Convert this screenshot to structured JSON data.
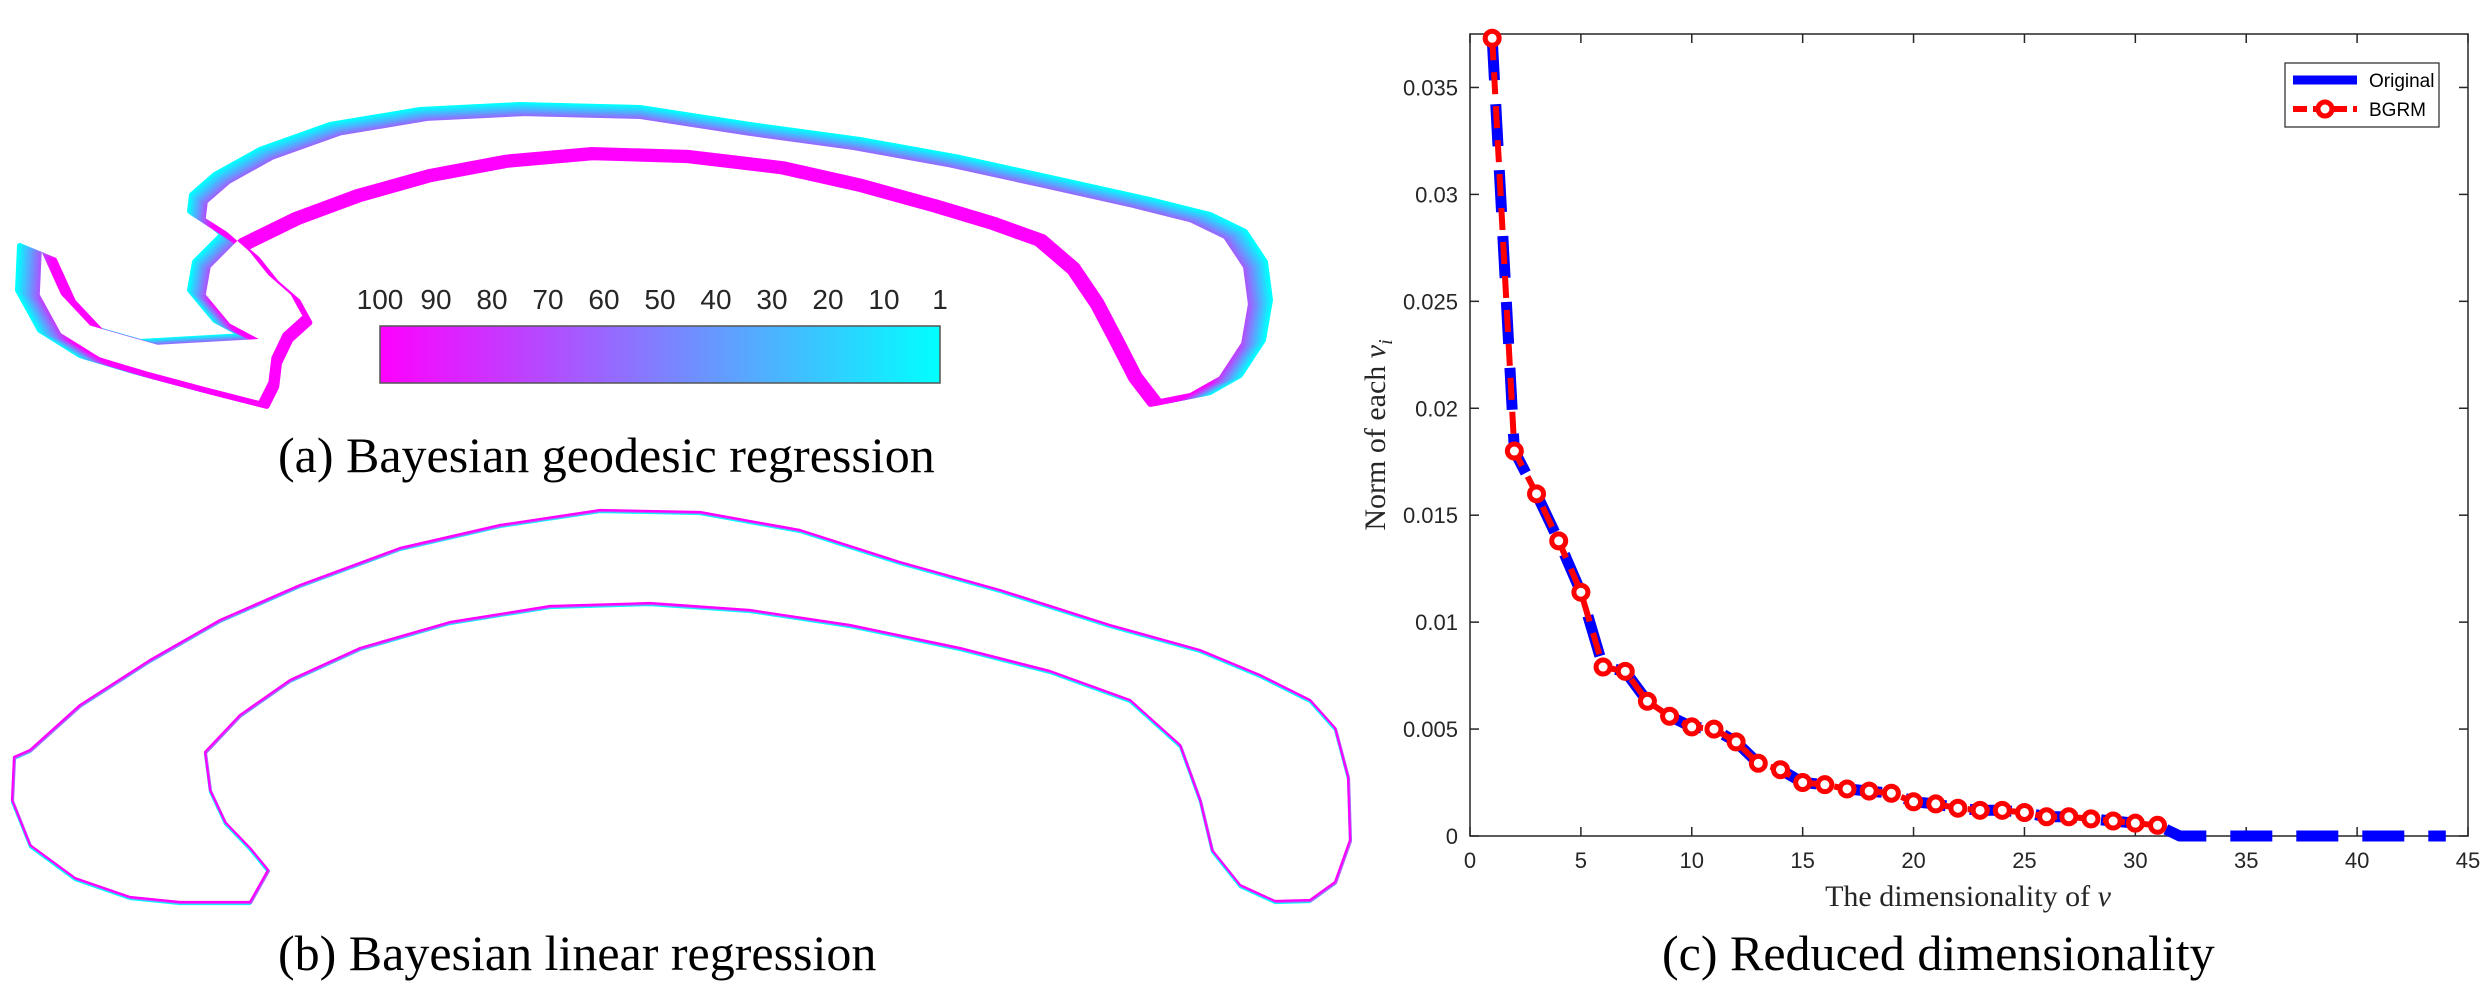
{
  "captions": {
    "a": "(a) Bayesian geodesic regression",
    "b": "(b) Bayesian linear regression",
    "c": "(c) Reduced dimensionality"
  },
  "colorbar": {
    "ticks": [
      "100",
      "90",
      "80",
      "70",
      "60",
      "50",
      "40",
      "30",
      "20",
      "10",
      "1"
    ],
    "colors": {
      "start": "#ff00ff",
      "end": "#00ffff"
    }
  },
  "colors": {
    "magenta": "#ff00ff",
    "cyan": "#00ffff",
    "original": "#0000ff",
    "bgrm": "#ff0000"
  },
  "chart_data": {
    "type": "line",
    "xlabel": "The dimensionality of v",
    "ylabel": "Norm of each v_i",
    "xlim": [
      0,
      45
    ],
    "ylim": [
      0,
      0.0375
    ],
    "xticks": [
      0,
      5,
      10,
      15,
      20,
      25,
      30,
      35,
      40,
      45
    ],
    "yticks": [
      0,
      0.005,
      0.01,
      0.015,
      0.02,
      0.025,
      0.03,
      0.035
    ],
    "xtick_labels": [
      "0",
      "5",
      "10",
      "15",
      "20",
      "25",
      "30",
      "35",
      "40",
      "45"
    ],
    "ytick_labels": [
      "0",
      "0.005",
      "0.01",
      "0.015",
      "0.02",
      "0.025",
      "0.03",
      "0.035"
    ],
    "legend_position": "top-right",
    "series": [
      {
        "name": "Original",
        "style": "thick dashed",
        "x": [
          1,
          2,
          3,
          4,
          5,
          6,
          7,
          8,
          9,
          10,
          11,
          12,
          13,
          14,
          15,
          16,
          17,
          18,
          19,
          20,
          21,
          22,
          23,
          24,
          25,
          26,
          27,
          28,
          29,
          30,
          31,
          32,
          33,
          34,
          35,
          36,
          37,
          38,
          39,
          40,
          41,
          42,
          43,
          44
        ],
        "y": [
          0.0373,
          0.018,
          0.016,
          0.0138,
          0.0114,
          0.0079,
          0.0077,
          0.0063,
          0.0056,
          0.0051,
          0.005,
          0.0044,
          0.0034,
          0.0031,
          0.0025,
          0.0024,
          0.0022,
          0.0021,
          0.002,
          0.0016,
          0.0015,
          0.0013,
          0.0012,
          0.0012,
          0.0011,
          0.0009,
          0.0009,
          0.0008,
          0.0007,
          0.0006,
          0.0005,
          0,
          0,
          0,
          0,
          0,
          0,
          0,
          0,
          0,
          0,
          0,
          0,
          0
        ]
      },
      {
        "name": "BGRM",
        "style": "dashed with circle markers",
        "x": [
          1,
          2,
          3,
          4,
          5,
          6,
          7,
          8,
          9,
          10,
          11,
          12,
          13,
          14,
          15,
          16,
          17,
          18,
          19,
          20,
          21,
          22,
          23,
          24,
          25,
          26,
          27,
          28,
          29,
          30,
          31
        ],
        "y": [
          0.0373,
          0.018,
          0.016,
          0.0138,
          0.0114,
          0.0079,
          0.0077,
          0.0063,
          0.0056,
          0.0051,
          0.005,
          0.0044,
          0.0034,
          0.0031,
          0.0025,
          0.0024,
          0.0022,
          0.0021,
          0.002,
          0.0016,
          0.0015,
          0.0013,
          0.0012,
          0.0012,
          0.0011,
          0.0009,
          0.0009,
          0.0008,
          0.0007,
          0.0006,
          0.0005
        ]
      }
    ]
  }
}
